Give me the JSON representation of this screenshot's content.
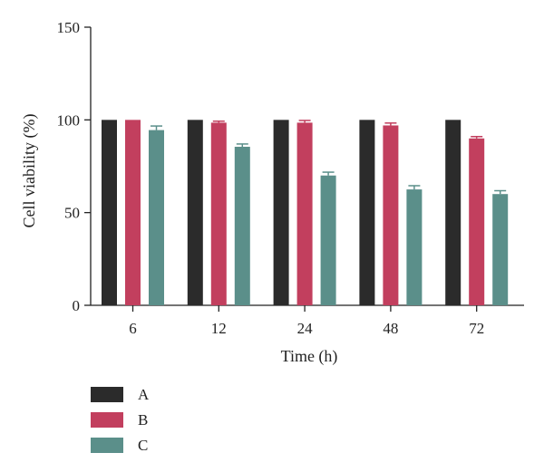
{
  "chart_data": {
    "type": "bar",
    "xlabel": "Time (h)",
    "ylabel": "Cell viability (%)",
    "ylim": [
      0,
      150
    ],
    "yticks": [
      0,
      50,
      100,
      150
    ],
    "categories": [
      "6",
      "12",
      "24",
      "48",
      "72"
    ],
    "series": [
      {
        "name": "A",
        "color": "#2b2b2b",
        "values": [
          100,
          100,
          100,
          100,
          100
        ],
        "errors": [
          0,
          0,
          0,
          0,
          0
        ]
      },
      {
        "name": "B",
        "color": "#c23f5e",
        "values": [
          100,
          98.5,
          98.5,
          97,
          90
        ],
        "errors": [
          0,
          0.8,
          1.2,
          1.3,
          1.0
        ]
      },
      {
        "name": "C",
        "color": "#5b8f8a",
        "values": [
          94.5,
          85.5,
          70,
          62.5,
          60
        ],
        "errors": [
          2.2,
          1.5,
          1.8,
          2.0,
          1.8
        ]
      }
    ],
    "legend_position": "bottom-left"
  }
}
